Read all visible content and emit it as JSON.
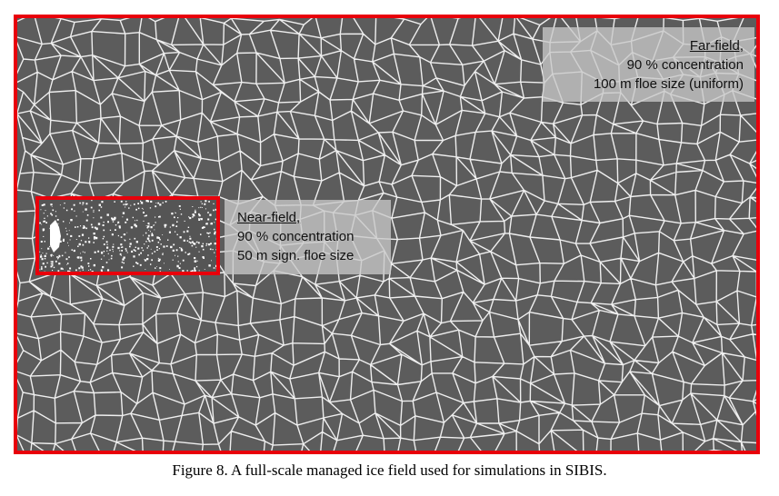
{
  "figure": {
    "far_field": {
      "title": "Far-field,",
      "concentration": "90 % concentration",
      "floe_size": "100 m floe size (uniform)"
    },
    "near_field": {
      "title": "Near-field,",
      "concentration": "90 % concentration",
      "floe_size": "50 m sign. floe size"
    },
    "caption": "Figure 8. A full-scale managed ice field used for simulations in SIBIS.",
    "colors": {
      "frame": "#e8000b",
      "ice_background": "#5c5c5c",
      "floe_gap": "#ffffff",
      "label_box": "#c8c8c8"
    }
  }
}
